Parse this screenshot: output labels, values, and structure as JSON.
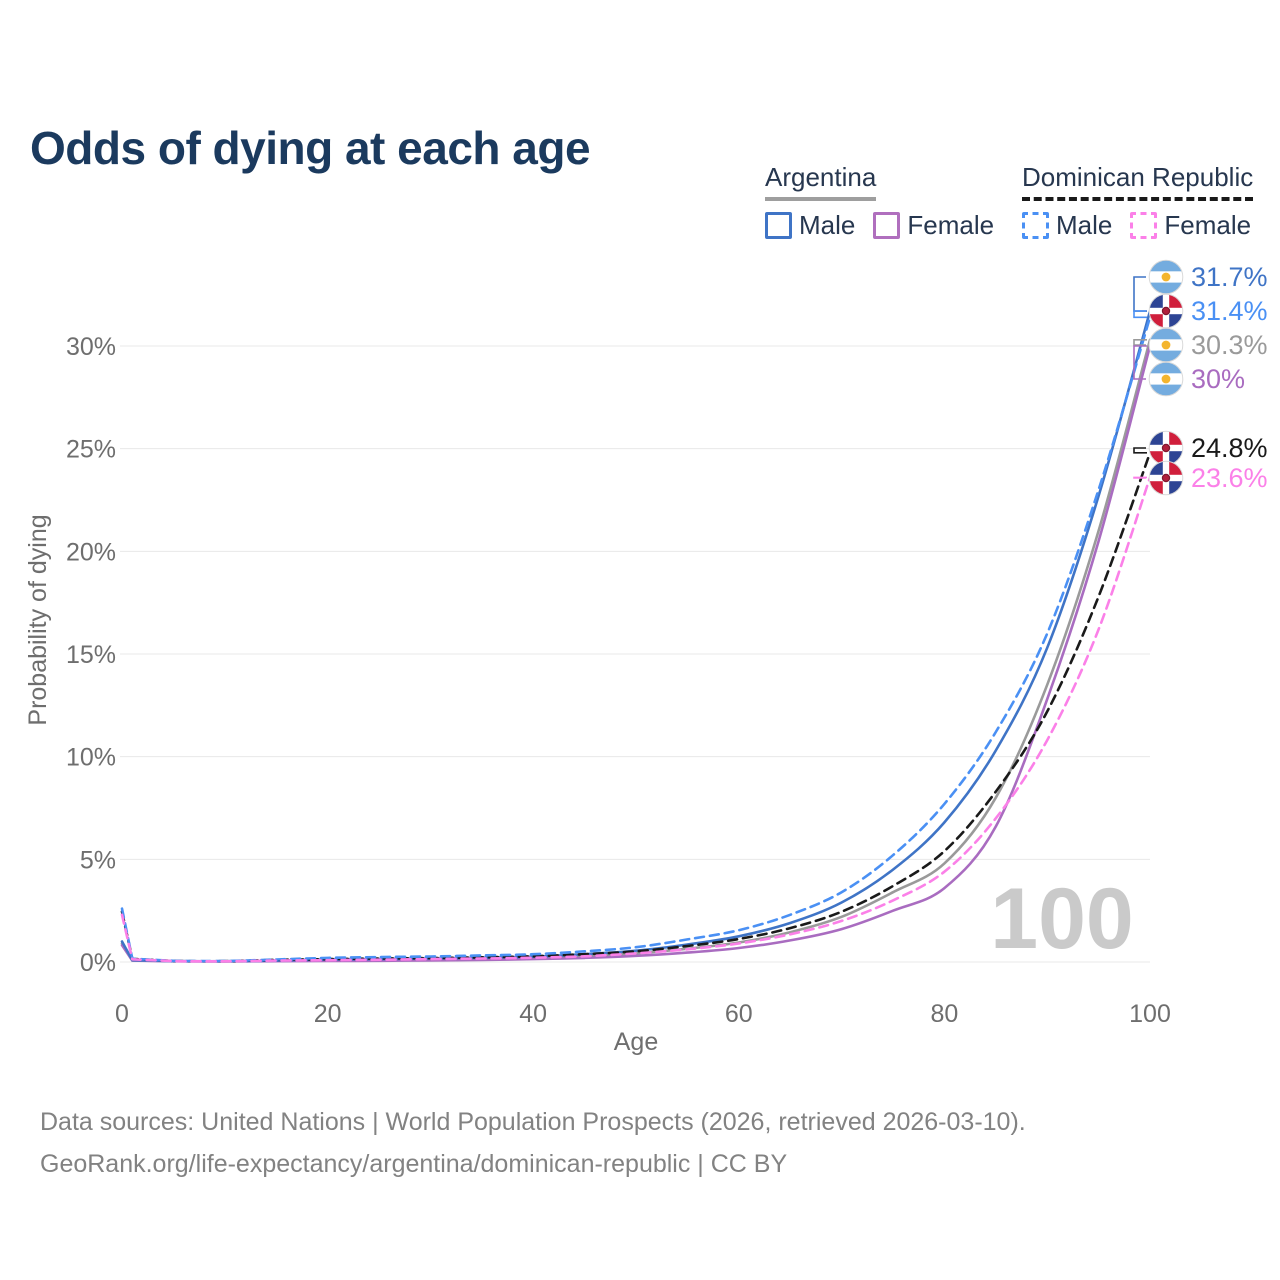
{
  "title": "Odds of dying at each age",
  "legend": {
    "groups": [
      {
        "label": "Argentina",
        "line_style": "solid",
        "underline": {
          "style": "solid",
          "color": "#9e9e9e"
        },
        "items": [
          {
            "label": "Male",
            "color": "#3f74c6",
            "dash": false
          },
          {
            "label": "Female",
            "color": "#b06fbe",
            "dash": false
          }
        ]
      },
      {
        "label": "Dominican Republic",
        "line_style": "dashed",
        "underline": {
          "style": "dashed",
          "color": "#1a1a1a"
        },
        "items": [
          {
            "label": "Male",
            "color": "#4a90f4",
            "dash": true
          },
          {
            "label": "Female",
            "color": "#fb80e8",
            "dash": true
          }
        ]
      }
    ]
  },
  "chart_data": {
    "type": "line",
    "title": "Odds of dying at each age",
    "xlabel": "Age",
    "ylabel": "Probability of dying",
    "unit": "%",
    "xlim": [
      0,
      100
    ],
    "ylim": [
      0,
      33
    ],
    "grid": true,
    "legend_position": "top-right",
    "xticks": [
      0,
      20,
      40,
      60,
      80,
      100
    ],
    "yticks": [
      "0%",
      "5%",
      "10%",
      "15%",
      "20%",
      "25%",
      "30%"
    ],
    "watermark": "100",
    "x": [
      0,
      1,
      5,
      10,
      15,
      20,
      25,
      30,
      35,
      40,
      45,
      50,
      55,
      60,
      65,
      70,
      75,
      80,
      85,
      90,
      95,
      100
    ],
    "series": [
      {
        "name": "Argentina Male",
        "country": "Argentina",
        "sex": "Male",
        "flag": "ar",
        "color": "#3f74c6",
        "dash": false,
        "end_label": "31.7%",
        "values": [
          1.0,
          0.09,
          0.045,
          0.04,
          0.07,
          0.12,
          0.14,
          0.17,
          0.21,
          0.26,
          0.38,
          0.55,
          0.85,
          1.25,
          1.9,
          2.9,
          4.5,
          6.8,
          10.3,
          15.3,
          22.7,
          31.7
        ]
      },
      {
        "name": "Dominican Republic Male",
        "country": "Dominican Republic",
        "sex": "Male",
        "flag": "do",
        "color": "#4a90f4",
        "dash": true,
        "end_label": "31.4%",
        "values": [
          2.6,
          0.16,
          0.06,
          0.05,
          0.12,
          0.2,
          0.24,
          0.27,
          0.32,
          0.38,
          0.52,
          0.72,
          1.1,
          1.55,
          2.3,
          3.4,
          5.2,
          7.7,
          11.2,
          16.0,
          23.0,
          31.4
        ]
      },
      {
        "name": "Argentina (both sexes)",
        "country": "Argentina",
        "sex": "Both",
        "flag": "ar",
        "color": "#9a9a9a",
        "dash": false,
        "end_label": "30.3%",
        "values": [
          0.9,
          0.08,
          0.04,
          0.03,
          0.055,
          0.085,
          0.1,
          0.12,
          0.15,
          0.2,
          0.29,
          0.42,
          0.65,
          0.95,
          1.45,
          2.2,
          3.4,
          4.8,
          8.0,
          13.5,
          21.0,
          30.3
        ]
      },
      {
        "name": "Argentina Female",
        "country": "Argentina",
        "sex": "Female",
        "flag": "ar",
        "color": "#a96cc0",
        "dash": false,
        "end_label": "30%",
        "values": [
          0.82,
          0.07,
          0.035,
          0.025,
          0.04,
          0.05,
          0.06,
          0.08,
          0.1,
          0.14,
          0.2,
          0.3,
          0.46,
          0.68,
          1.05,
          1.6,
          2.5,
          3.6,
          6.6,
          12.8,
          20.5,
          30.0
        ]
      },
      {
        "name": "Dominican Republic (both sexes)",
        "country": "Dominican Republic",
        "sex": "Both",
        "flag": "do",
        "color": "#1a1a1a",
        "dash": true,
        "end_label": "24.8%",
        "values": [
          2.45,
          0.15,
          0.05,
          0.04,
          0.1,
          0.14,
          0.17,
          0.19,
          0.23,
          0.28,
          0.38,
          0.52,
          0.78,
          1.12,
          1.65,
          2.45,
          3.7,
          5.4,
          8.3,
          12.2,
          17.8,
          24.8
        ]
      },
      {
        "name": "Dominican Republic Female",
        "country": "Dominican Republic",
        "sex": "Female",
        "flag": "do",
        "color": "#fb80e8",
        "dash": true,
        "end_label": "23.6%",
        "values": [
          2.3,
          0.13,
          0.045,
          0.035,
          0.07,
          0.09,
          0.11,
          0.14,
          0.17,
          0.21,
          0.28,
          0.42,
          0.62,
          0.9,
          1.35,
          2.0,
          3.0,
          4.4,
          7.0,
          10.8,
          16.2,
          23.6
        ]
      }
    ]
  },
  "footer": {
    "line1": "Data sources: United Nations | World Population Prospects (2026, retrieved 2026-03-10).",
    "line2": "GeoRank.org/life-expectancy/argentina/dominican-republic | CC BY"
  }
}
